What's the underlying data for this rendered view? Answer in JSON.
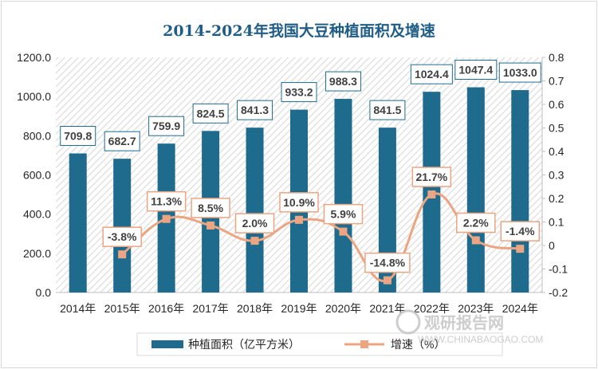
{
  "chart_data": {
    "type": "bar",
    "title": "2014-2024年我国大豆种植面积及增速",
    "categories": [
      "2014年",
      "2015年",
      "2016年",
      "2017年",
      "2018年",
      "2019年",
      "2020年",
      "2021年",
      "2022年",
      "2023年",
      "2024年"
    ],
    "series": [
      {
        "name": "种植面积（亿平方米）",
        "type": "bar",
        "axis": "left",
        "values": [
          709.8,
          682.7,
          759.9,
          824.5,
          841.3,
          933.2,
          988.3,
          841.5,
          1024.4,
          1047.4,
          1033.0
        ],
        "labels": [
          "709.8",
          "682.7",
          "759.9",
          "824.5",
          "841.3",
          "933.2",
          "988.3",
          "841.5",
          "1024.4",
          "1047.4",
          "1033.0"
        ],
        "color": "#1f6b8e"
      },
      {
        "name": "增速（%）",
        "type": "line",
        "axis": "right",
        "values": [
          null,
          -0.038,
          0.113,
          0.085,
          0.02,
          0.109,
          0.059,
          -0.148,
          0.217,
          0.022,
          -0.014
        ],
        "labels": [
          "",
          "-3.8%",
          "11.3%",
          "8.5%",
          "2.0%",
          "10.9%",
          "5.9%",
          "-14.8%",
          "21.7%",
          "2.2%",
          "-1.4%"
        ],
        "color": "#eba583"
      }
    ],
    "y_left": {
      "min": 0,
      "max": 1200,
      "step": 200,
      "ticks": [
        "0.0",
        "200.0",
        "400.0",
        "600.0",
        "800.0",
        "1000.0",
        "1200.0"
      ]
    },
    "y_right": {
      "min": -0.2,
      "max": 0.8,
      "step": 0.1,
      "ticks": [
        "-0.2",
        "-0.1",
        "0",
        "0.1",
        "0.2",
        "0.3",
        "0.4",
        "0.5",
        "0.6",
        "0.7",
        "0.8"
      ]
    },
    "legend_position": "bottom",
    "grid": false
  },
  "watermark": {
    "text": "观研报告网",
    "sub": "WWW.CHINABAOGAO.COM"
  }
}
